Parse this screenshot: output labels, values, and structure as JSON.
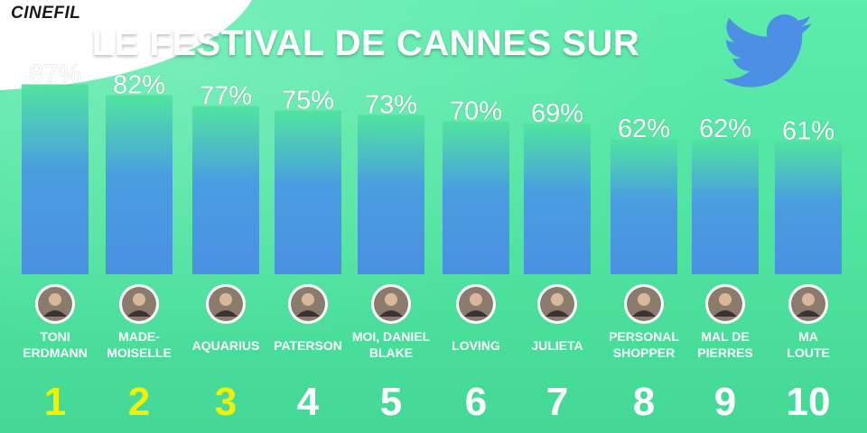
{
  "brand": {
    "logo": "CINEFIL"
  },
  "header": {
    "title": "LE FESTIVAL DE CANNES SUR",
    "icon": "twitter-bird-icon"
  },
  "colors": {
    "bar_top": "#4fe3a0",
    "bar_bottom": "#4a90e2",
    "rank_top3": "#f2f200",
    "rank_other": "#ffffff",
    "twitter_blue": "#4d8fe4"
  },
  "chart_data": {
    "type": "bar",
    "categories": [
      [
        "TONI",
        "ERDMANN"
      ],
      [
        "MADE-",
        "MOISELLE"
      ],
      [
        "AQUARIUS"
      ],
      [
        "PATERSON"
      ],
      [
        "MOI, DANIEL",
        "BLAKE"
      ],
      [
        "LOVING"
      ],
      [
        "JULIETA"
      ],
      [
        "PERSONAL",
        "SHOPPER"
      ],
      [
        "MAL DE",
        "PIERRES"
      ],
      [
        "MA",
        "LOUTE"
      ]
    ],
    "values": [
      87,
      82,
      77,
      75,
      73,
      70,
      69,
      62,
      62,
      61
    ],
    "value_labels": [
      "87%",
      "82%",
      "77%",
      "75%",
      "73%",
      "70%",
      "69%",
      "62%",
      "62%",
      "61%"
    ],
    "ranks": [
      "1",
      "2",
      "3",
      "4",
      "5",
      "6",
      "7",
      "8",
      "9",
      "10"
    ],
    "ylim": [
      0,
      100
    ],
    "title": "LE FESTIVAL DE CANNES SUR",
    "xlabel": "",
    "ylabel": "",
    "grid": false
  }
}
